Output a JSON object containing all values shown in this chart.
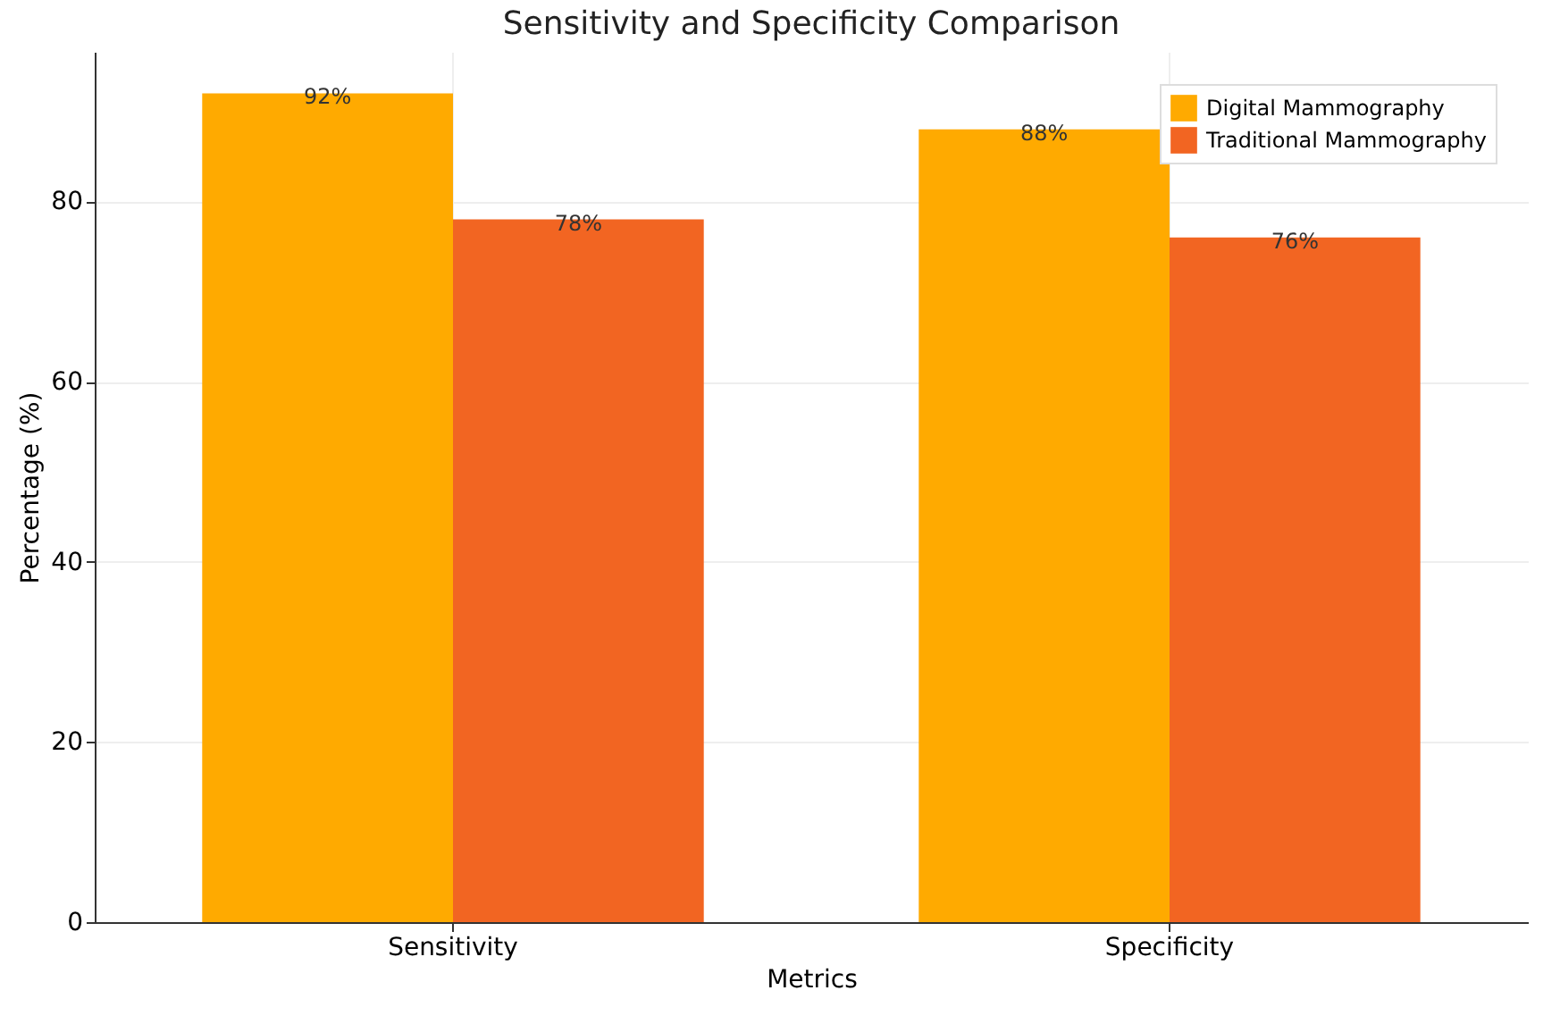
{
  "chart_data": {
    "type": "bar",
    "title": "Sensitivity and Specificity Comparison",
    "xlabel": "Metrics",
    "ylabel": "Percentage (%)",
    "categories": [
      "Sensitivity",
      "Specificity"
    ],
    "series": [
      {
        "name": "Digital Mammography",
        "color": "#ffaa00",
        "values": [
          92,
          88
        ],
        "value_labels": [
          "92%",
          "88%"
        ]
      },
      {
        "name": "Traditional Mammography",
        "color": "#f26522",
        "values": [
          78,
          76
        ],
        "value_labels": [
          "78%",
          "76%"
        ]
      }
    ],
    "ylim": [
      0,
      96.6
    ],
    "yticks": [
      0,
      20,
      40,
      60,
      80
    ],
    "grid": true,
    "legend": "top right"
  }
}
